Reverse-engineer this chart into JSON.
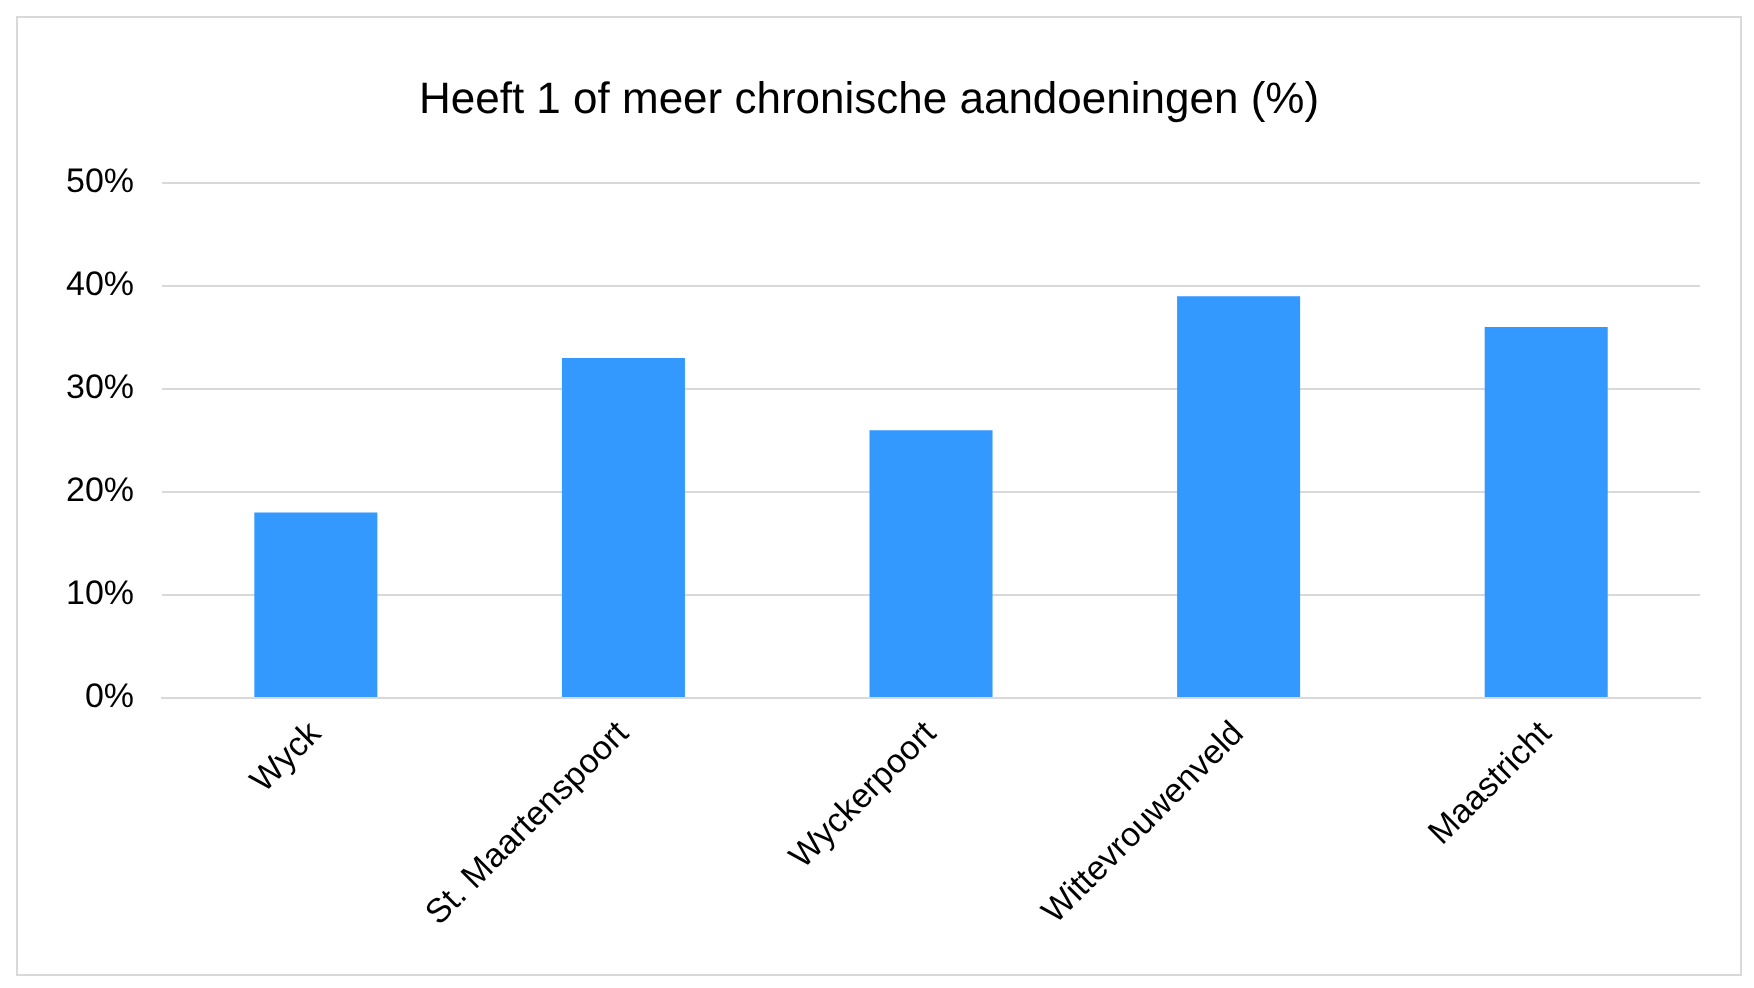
{
  "chart_data": {
    "type": "bar",
    "title": "Heeft 1 of meer chronische aandoeningen (%)",
    "categories": [
      "Wyck",
      "St. Maartenspoort",
      "Wyckerpoort",
      "Wittevrouwenveld",
      "Maastricht"
    ],
    "values": [
      18,
      33,
      26,
      39,
      36
    ],
    "color": "#3399ff",
    "ylim": [
      0,
      50
    ],
    "yticks": [
      {
        "value": 0,
        "label": "0%"
      },
      {
        "value": 10,
        "label": "10%"
      },
      {
        "value": 20,
        "label": "20%"
      },
      {
        "value": 30,
        "label": "30%"
      },
      {
        "value": 40,
        "label": "40%"
      },
      {
        "value": 50,
        "label": "50%"
      }
    ],
    "grid": "y"
  }
}
